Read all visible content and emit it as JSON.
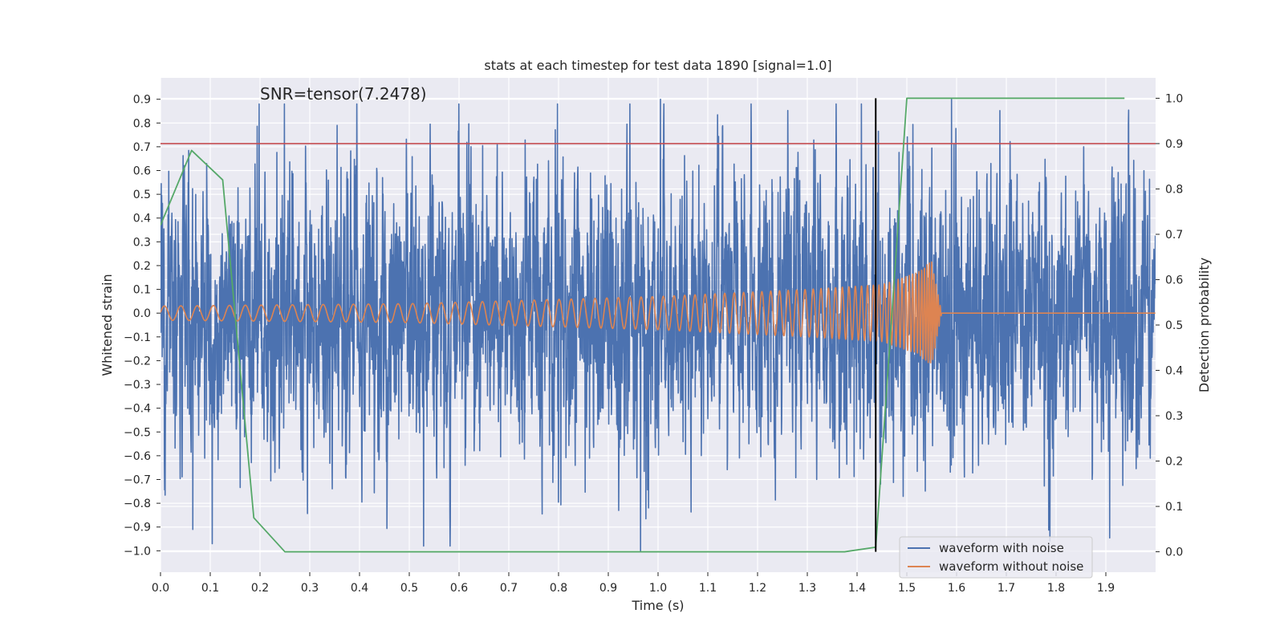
{
  "chart_data": {
    "type": "line",
    "title": "stats at each timestep for test data 1890 [signal=1.0]",
    "xlabel": "Time (s)",
    "ylabel_left": "Whitened strain",
    "ylabel_right": "Detection probability",
    "annotation": "SNR=tensor(7.2478)",
    "xlim": [
      0.0,
      2.0
    ],
    "ylim_left": [
      -1.09,
      0.99
    ],
    "ylim_right": [
      -0.045,
      1.045
    ],
    "x_ticks": [
      "0.0",
      "0.1",
      "0.2",
      "0.3",
      "0.4",
      "0.5",
      "0.6",
      "0.7",
      "0.8",
      "0.9",
      "1.0",
      "1.1",
      "1.2",
      "1.3",
      "1.4",
      "1.5",
      "1.6",
      "1.7",
      "1.8",
      "1.9"
    ],
    "y_ticks_left": [
      "0.9",
      "0.8",
      "0.7",
      "0.6",
      "0.5",
      "0.4",
      "0.3",
      "0.2",
      "0.1",
      "0.0",
      "−0.1",
      "−0.2",
      "−0.3",
      "−0.4",
      "−0.5",
      "−0.6",
      "−0.7",
      "−0.8",
      "−0.9",
      "−1.0"
    ],
    "y_ticks_right": [
      "1.0",
      "0.9",
      "0.8",
      "0.7",
      "0.6",
      "0.5",
      "0.4",
      "0.3",
      "0.2",
      "0.1",
      "0.0"
    ],
    "grid": true,
    "legend_position": "lower right",
    "colors": {
      "noisy": "#4c72b0",
      "clean": "#dd8452",
      "probability": "#55a868",
      "threshold": "#c44e52",
      "marker": "#000000",
      "axes_bg": "#eaeaf2",
      "grid": "#ffffff"
    },
    "series": [
      {
        "name": "waveform with noise",
        "axis": "left",
        "style": "dense noisy strain trace, amplitude roughly -1.0 to 0.9",
        "x_range": [
          0.0,
          2.0
        ],
        "notable_points": [
          {
            "x": 0.0,
            "y": 0.4
          },
          {
            "x": 0.065,
            "y": -0.91
          },
          {
            "x": 0.355,
            "y": 0.79
          },
          {
            "x": 0.965,
            "y": -1.0
          },
          {
            "x": 1.005,
            "y": 0.9
          },
          {
            "x": 1.59,
            "y": 0.9
          }
        ]
      },
      {
        "name": "waveform without noise",
        "axis": "left",
        "style": "chirp: amplitude and frequency increase until merger at ~1.55 s, then ringdown to 0",
        "points": [
          {
            "x": 0.0,
            "amp": 0.03,
            "freq_hz": 30
          },
          {
            "x": 0.5,
            "amp": 0.04,
            "freq_hz": 34
          },
          {
            "x": 1.0,
            "amp": 0.07,
            "freq_hz": 45
          },
          {
            "x": 1.3,
            "amp": 0.1,
            "freq_hz": 60
          },
          {
            "x": 1.45,
            "amp": 0.12,
            "freq_hz": 90
          },
          {
            "x": 1.52,
            "amp": 0.17,
            "freq_hz": 160
          },
          {
            "x": 1.55,
            "amp": 0.22,
            "freq_hz": 220
          },
          {
            "x": 1.57,
            "amp": 0.0,
            "freq_hz": 250
          }
        ]
      },
      {
        "name": "",
        "axis": "right",
        "label": "Detection probability",
        "x": [
          0.0,
          0.0625,
          0.125,
          0.1875,
          0.25,
          0.3125,
          0.375,
          0.4375,
          0.5,
          0.5625,
          0.625,
          0.6875,
          0.75,
          0.8125,
          0.875,
          0.9375,
          1.0,
          1.0625,
          1.125,
          1.1875,
          1.25,
          1.3125,
          1.375,
          1.4375,
          1.5,
          1.5625,
          1.625,
          1.6875,
          1.75,
          1.8125,
          1.875,
          1.9375
        ],
        "y": [
          0.72,
          0.885,
          0.82,
          0.075,
          0.0,
          0.0,
          0.0,
          0.0,
          0.0,
          0.0,
          0.0,
          0.0,
          0.0,
          0.0,
          0.0,
          0.0,
          0.0,
          0.0,
          0.0,
          0.0,
          0.0,
          0.0,
          0.0,
          0.01,
          1.0,
          1.0,
          1.0,
          1.0,
          1.0,
          1.0,
          1.0,
          1.0
        ]
      }
    ],
    "threshold": {
      "axis": "right",
      "value": 0.9
    },
    "vertical_marker": {
      "x": 1.4375,
      "y_from": 0.0,
      "y_to": 1.0,
      "axis": "right"
    }
  }
}
